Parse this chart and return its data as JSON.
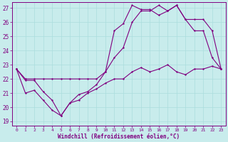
{
  "xlabel": "Windchill (Refroidissement éolien,°C)",
  "bg_color": "#c8ecec",
  "line_color": "#800080",
  "grid_color": "#aadddd",
  "xlim": [
    -0.5,
    23.5
  ],
  "ylim": [
    18.7,
    27.4
  ],
  "yticks": [
    19,
    20,
    21,
    22,
    23,
    24,
    25,
    26,
    27
  ],
  "xticks": [
    0,
    1,
    2,
    3,
    4,
    5,
    6,
    7,
    8,
    9,
    10,
    11,
    12,
    13,
    14,
    15,
    16,
    17,
    18,
    19,
    20,
    21,
    22,
    23
  ],
  "line1_x": [
    0,
    1,
    2,
    3,
    4,
    5,
    6,
    7,
    8,
    9,
    10,
    11,
    12,
    13,
    14,
    15,
    16,
    17,
    18,
    19,
    20,
    21,
    22,
    23
  ],
  "line1_y": [
    22.7,
    21.9,
    21.9,
    21.1,
    20.5,
    19.4,
    20.3,
    20.9,
    21.1,
    21.6,
    22.5,
    25.4,
    25.9,
    27.2,
    26.9,
    26.9,
    26.5,
    26.8,
    27.2,
    26.2,
    25.4,
    25.4,
    23.5,
    22.7
  ],
  "line2_x": [
    0,
    1,
    2,
    3,
    4,
    5,
    6,
    7,
    8,
    9,
    10,
    11,
    12,
    13,
    14,
    15,
    16,
    17,
    18,
    19,
    20,
    21,
    22,
    23
  ],
  "line2_y": [
    22.7,
    22.0,
    22.0,
    22.0,
    22.0,
    22.0,
    22.0,
    22.0,
    22.0,
    22.0,
    22.5,
    23.5,
    24.2,
    26.0,
    26.8,
    26.8,
    27.2,
    26.8,
    27.2,
    26.2,
    26.2,
    26.2,
    25.4,
    22.7
  ],
  "line3_x": [
    0,
    1,
    2,
    3,
    4,
    5,
    6,
    7,
    8,
    9,
    10,
    11,
    12,
    13,
    14,
    15,
    16,
    17,
    18,
    19,
    20,
    21,
    22,
    23
  ],
  "line3_y": [
    22.7,
    21.0,
    21.2,
    20.5,
    19.8,
    19.4,
    20.3,
    20.5,
    21.0,
    21.3,
    21.7,
    22.0,
    22.0,
    22.5,
    22.8,
    22.5,
    22.7,
    23.0,
    22.5,
    22.3,
    22.7,
    22.7,
    22.9,
    22.7
  ]
}
